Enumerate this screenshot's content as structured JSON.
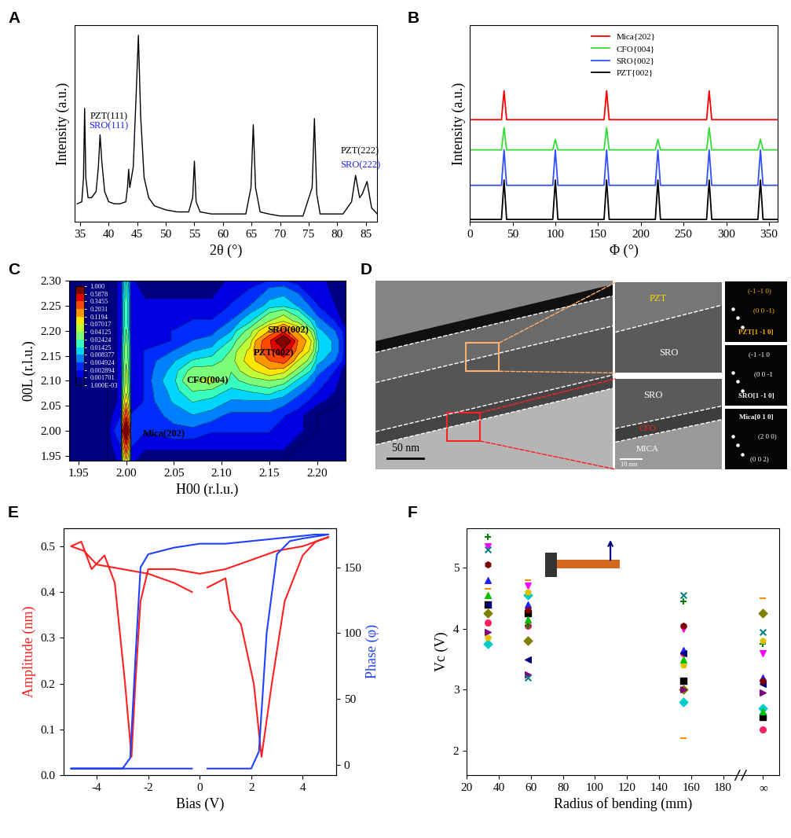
{
  "chart_data": [
    {
      "panel": "A",
      "type": "line",
      "xlabel": "2θ (°)",
      "ylabel": "Intensity (a.u.)",
      "color": "#000000",
      "xlim": [
        34,
        87
      ],
      "xticks": [
        35,
        40,
        45,
        50,
        55,
        60,
        65,
        70,
        75,
        80,
        85
      ],
      "ylim": [
        0.08,
        1.05
      ],
      "tick_labels": "x",
      "x": [
        34.5,
        35.3,
        35.6,
        35.8,
        36.0,
        36.4,
        37.0,
        37.8,
        38.2,
        38.5,
        38.8,
        39.3,
        40,
        41,
        42,
        43,
        43.3,
        43.5,
        43.7,
        44.3,
        44.8,
        45.2,
        45.6,
        46.2,
        47,
        48,
        50,
        52,
        54,
        54.7,
        55.0,
        55.3,
        56,
        58,
        60,
        62,
        64,
        64.9,
        65.3,
        65.7,
        66.5,
        68,
        70,
        72,
        74,
        75.6,
        76.0,
        76.4,
        77,
        79,
        81,
        82.5,
        83.2,
        83.9,
        84.4,
        85.2,
        86.0,
        87
      ],
      "values": [
        0.17,
        0.18,
        0.3,
        0.64,
        0.3,
        0.2,
        0.2,
        0.23,
        0.35,
        0.51,
        0.38,
        0.23,
        0.18,
        0.17,
        0.17,
        0.18,
        0.25,
        0.34,
        0.25,
        0.35,
        0.7,
        1.0,
        0.6,
        0.3,
        0.2,
        0.16,
        0.14,
        0.13,
        0.13,
        0.2,
        0.38,
        0.18,
        0.13,
        0.12,
        0.12,
        0.12,
        0.12,
        0.25,
        0.56,
        0.25,
        0.13,
        0.12,
        0.11,
        0.11,
        0.11,
        0.25,
        0.59,
        0.22,
        0.12,
        0.12,
        0.12,
        0.18,
        0.31,
        0.2,
        0.22,
        0.28,
        0.15,
        0.12
      ],
      "annotations": [
        {
          "text": "PZT(111)",
          "x": 40.0,
          "y": 0.6,
          "color": "#000000"
        },
        {
          "text": "SRO(111)",
          "x": 40.0,
          "y": 0.555,
          "color": "#2020ff"
        },
        {
          "text": "PZT(222)",
          "x": 84.0,
          "y": 0.43,
          "color": "#000000"
        },
        {
          "text": "SRO(222)",
          "x": 84.0,
          "y": 0.36,
          "color": "#2020ff"
        }
      ]
    },
    {
      "panel": "B",
      "type": "line",
      "xlabel": "Φ (°)",
      "ylabel": "Intensity (a.u.)",
      "xlim": [
        0,
        360
      ],
      "xticks": [
        0,
        50,
        100,
        150,
        200,
        250,
        300,
        350
      ],
      "ylim": [
        0,
        1.5
      ],
      "tick_labels": "x",
      "legend": "upper center",
      "series": [
        {
          "name": "Mica{202}",
          "color": "#ff0000",
          "x": [
            0,
            37,
            40,
            43,
            157,
            160,
            163,
            277,
            280,
            283,
            360
          ],
          "values": [
            0.78,
            0.78,
            1.0,
            0.78,
            0.78,
            1.0,
            0.78,
            0.78,
            1.0,
            0.78,
            0.78
          ]
        },
        {
          "name": "CFO{004}",
          "color": "#33dd33",
          "x": [
            0,
            37,
            40,
            43,
            97,
            100,
            103,
            157,
            160,
            163,
            217,
            220,
            223,
            277,
            280,
            283,
            337,
            340,
            343,
            360
          ],
          "values": [
            0.55,
            0.55,
            0.72,
            0.55,
            0.55,
            0.63,
            0.55,
            0.55,
            0.72,
            0.55,
            0.55,
            0.63,
            0.55,
            0.55,
            0.72,
            0.55,
            0.55,
            0.63,
            0.55,
            0.55
          ]
        },
        {
          "name": "SRO{002}",
          "color": "#3050ff",
          "x": [
            0,
            37,
            40,
            43,
            97,
            100,
            103,
            157,
            160,
            163,
            217,
            220,
            223,
            277,
            280,
            283,
            337,
            340,
            343,
            360
          ],
          "values": [
            0.28,
            0.28,
            0.55,
            0.28,
            0.28,
            0.55,
            0.28,
            0.28,
            0.55,
            0.28,
            0.28,
            0.55,
            0.28,
            0.28,
            0.55,
            0.28,
            0.28,
            0.55,
            0.28,
            0.28
          ]
        },
        {
          "name": "PZT{002}",
          "color": "#000000",
          "x": [
            0,
            37,
            40,
            43,
            97,
            100,
            103,
            157,
            160,
            163,
            217,
            220,
            223,
            277,
            280,
            283,
            337,
            340,
            343,
            360
          ],
          "values": [
            0.02,
            0.02,
            0.32,
            0.02,
            0.02,
            0.32,
            0.02,
            0.02,
            0.32,
            0.02,
            0.02,
            0.32,
            0.02,
            0.02,
            0.32,
            0.02,
            0.02,
            0.32,
            0.02,
            0.02
          ]
        }
      ]
    },
    {
      "panel": "C",
      "type": "contour",
      "xlabel": "H00 (r.l.u.)",
      "ylabel": "00L (r.l.u.)",
      "xlim": [
        1.94,
        2.23
      ],
      "ylim": [
        1.94,
        2.3
      ],
      "xticks": [
        1.95,
        {
          "value": 2.0,
          "label": "2.00"
        },
        2.05,
        {
          "value": 2.1,
          "label": "2.10"
        },
        2.15,
        {
          "value": 2.2,
          "label": "2.20"
        }
      ],
      "yticks": [
        1.95,
        {
          "value": 2.0,
          "label": "2.00"
        },
        2.05,
        {
          "value": 2.1,
          "label": "2.10"
        },
        2.15,
        {
          "value": 2.2,
          "label": "2.20"
        },
        2.25,
        {
          "value": 2.3,
          "label": "2.30"
        }
      ],
      "h": [
        1.94,
        1.98,
        1.995,
        2.0,
        2.005,
        2.02,
        2.05,
        2.07,
        2.09,
        2.11,
        2.13,
        2.15,
        2.165,
        2.18,
        2.2,
        2.23
      ],
      "l": [
        1.94,
        1.97,
        2.0,
        2.03,
        2.06,
        2.08,
        2.1,
        2.12,
        2.14,
        2.16,
        2.18,
        2.2,
        2.22,
        2.25,
        2.3
      ],
      "intensity": [
        [
          0.001,
          0.001,
          0.002,
          0.1,
          0.002,
          0.001,
          0.001,
          0.001,
          0.001,
          0.001,
          0.001,
          0.001,
          0.001,
          0.001,
          0.001,
          0.001
        ],
        [
          0.001,
          0.001,
          0.003,
          0.3,
          0.003,
          0.002,
          0.002,
          0.002,
          0.002,
          0.002,
          0.002,
          0.002,
          0.002,
          0.001,
          0.001,
          0.001
        ],
        [
          0.001,
          0.001,
          0.005,
          1.0,
          0.005,
          0.003,
          0.004,
          0.004,
          0.003,
          0.003,
          0.003,
          0.003,
          0.002,
          0.002,
          0.001,
          0.001
        ],
        [
          0.001,
          0.001,
          0.003,
          0.3,
          0.003,
          0.003,
          0.006,
          0.008,
          0.006,
          0.004,
          0.004,
          0.004,
          0.003,
          0.002,
          0.001,
          0.001
        ],
        [
          0.001,
          0.001,
          0.002,
          0.1,
          0.002,
          0.003,
          0.009,
          0.015,
          0.012,
          0.008,
          0.008,
          0.008,
          0.006,
          0.004,
          0.002,
          0.001
        ],
        [
          0.001,
          0.001,
          0.002,
          0.06,
          0.002,
          0.003,
          0.01,
          0.025,
          0.02,
          0.012,
          0.015,
          0.018,
          0.012,
          0.006,
          0.003,
          0.001
        ],
        [
          0.001,
          0.001,
          0.002,
          0.05,
          0.002,
          0.003,
          0.012,
          0.04,
          0.05,
          0.02,
          0.03,
          0.04,
          0.03,
          0.012,
          0.004,
          0.001
        ],
        [
          0.001,
          0.001,
          0.002,
          0.045,
          0.002,
          0.003,
          0.01,
          0.03,
          0.03,
          0.025,
          0.06,
          0.1,
          0.08,
          0.03,
          0.006,
          0.001
        ],
        [
          0.001,
          0.001,
          0.002,
          0.04,
          0.002,
          0.003,
          0.008,
          0.015,
          0.018,
          0.03,
          0.09,
          0.2,
          0.25,
          0.07,
          0.01,
          0.002
        ],
        [
          0.001,
          0.001,
          0.002,
          0.035,
          0.002,
          0.003,
          0.005,
          0.008,
          0.01,
          0.025,
          0.08,
          0.3,
          0.5,
          0.15,
          0.015,
          0.002
        ],
        [
          0.001,
          0.001,
          0.002,
          0.03,
          0.002,
          0.002,
          0.003,
          0.005,
          0.006,
          0.015,
          0.05,
          0.3,
          1.0,
          0.2,
          0.015,
          0.002
        ],
        [
          0.001,
          0.001,
          0.002,
          0.025,
          0.002,
          0.002,
          0.003,
          0.004,
          0.004,
          0.008,
          0.03,
          0.12,
          0.25,
          0.1,
          0.01,
          0.002
        ],
        [
          0.001,
          0.001,
          0.002,
          0.02,
          0.002,
          0.002,
          0.002,
          0.003,
          0.003,
          0.005,
          0.012,
          0.04,
          0.06,
          0.03,
          0.006,
          0.001
        ],
        [
          0.001,
          0.001,
          0.002,
          0.02,
          0.002,
          0.002,
          0.002,
          0.002,
          0.002,
          0.003,
          0.005,
          0.01,
          0.012,
          0.008,
          0.003,
          0.001
        ],
        [
          0.001,
          0.001,
          0.002,
          0.015,
          0.002,
          0.001,
          0.001,
          0.001,
          0.001,
          0.002,
          0.002,
          0.003,
          0.003,
          0.002,
          0.002,
          0.001
        ]
      ],
      "levels": [
        {
          "value": 0.001,
          "label": "1.000E-03"
        },
        0.001701,
        0.002894,
        0.004924,
        0.008377,
        0.01425,
        0.02424,
        0.04125,
        0.07017,
        0.1194,
        0.2031,
        0.3455,
        0.5878,
        {
          "value": 1.0,
          "label": "1.000"
        }
      ],
      "annotations": [
        {
          "text": "SRO(002)",
          "x": 2.17,
          "y": 2.2,
          "color": "#000000"
        },
        {
          "text": "PZT(002)",
          "x": 2.155,
          "y": 2.155,
          "color": "#000000"
        },
        {
          "text": "CFO(004)",
          "x": 2.085,
          "y": 2.1,
          "color": "#000000"
        },
        {
          "text": "Mica(202)",
          "x": 2.04,
          "y": 1.995,
          "color": "#000000"
        }
      ]
    },
    {
      "panel": "D",
      "type": "image",
      "scale_bars": [
        "50 nm",
        "10 nm"
      ],
      "insets": [
        {
          "labels": [
            "PZT",
            "SRO"
          ],
          "colors": [
            "#ffd700",
            "#ffffff"
          ]
        },
        {
          "labels": [
            "SRO",
            "CFO",
            "MICA"
          ],
          "colors": [
            "#ffffff",
            "#ff2020",
            "#ffffff"
          ]
        }
      ],
      "fft": [
        {
          "zone": "PZT[1 -1 0]",
          "spots": [
            "(-1 -1 0)",
            "(0 0 -1)"
          ],
          "color": "#ffb000"
        },
        {
          "zone": "SRO[1 -1 0]",
          "spots": [
            "(-1 -1 0",
            "(0 0 -1"
          ],
          "color": "#ffffff"
        },
        {
          "zone": "Mica[0 1 0]",
          "spots": [
            "(2 0 0)",
            "(0 0 2)"
          ],
          "color": "#ffffff"
        }
      ]
    },
    {
      "panel": "E",
      "type": "line",
      "xlabel": "Bias (V)",
      "ylabel": "Amplitude (nm)",
      "y2label": "Phase (φ)",
      "xlim": [
        -5.3,
        5.3
      ],
      "xticks": [
        -4,
        -2,
        0,
        2,
        4
      ],
      "ylim": [
        0,
        0.54
      ],
      "yticks": [
        0.0,
        0.1,
        0.2,
        0.3,
        0.4,
        0.5
      ],
      "y2lim": [
        -8,
        180
      ],
      "y2ticks": [
        0,
        50,
        100,
        150
      ],
      "series": [
        {
          "color": "#ff2020",
          "axis": "y",
          "x": [
            0.3,
            1.0,
            1.2,
            1.6,
            2.1,
            2.4,
            2.8,
            3.3,
            4.0,
            4.5,
            5.0,
            4.5,
            4.0,
            3.0,
            2.0,
            1.0,
            0.0,
            -1.0,
            -2.0,
            -2.3,
            -2.5,
            -2.65,
            -2.9,
            -3.3,
            -3.7,
            -4.2,
            -4.6,
            -5.0,
            -4.5,
            -4.0,
            -3.0,
            -2.0,
            -1.0,
            -0.3
          ],
          "values": [
            0.41,
            0.43,
            0.36,
            0.33,
            0.2,
            0.04,
            0.2,
            0.38,
            0.48,
            0.51,
            0.52,
            0.51,
            0.5,
            0.49,
            0.47,
            0.45,
            0.44,
            0.45,
            0.45,
            0.38,
            0.2,
            0.04,
            0.2,
            0.42,
            0.48,
            0.45,
            0.51,
            0.5,
            0.49,
            0.46,
            0.45,
            0.44,
            0.42,
            0.4
          ]
        },
        {
          "color": "#2040ff",
          "axis": "y2",
          "x": [
            0.3,
            1.0,
            2.0,
            2.3,
            2.6,
            3.0,
            3.5,
            4.0,
            5.0,
            4.5,
            3.0,
            2.0,
            1.0,
            0.0,
            -1.0,
            -2.0,
            -2.3,
            -2.5,
            -2.7,
            -3.0,
            -4.0,
            -5.0,
            -4.0,
            -2.0,
            -0.3
          ],
          "values": [
            -3,
            -3,
            -3,
            10,
            100,
            160,
            170,
            172,
            175,
            175,
            172,
            170,
            168,
            168,
            165,
            160,
            150,
            80,
            5,
            -3,
            -3,
            -3,
            -3,
            -3,
            -3
          ]
        }
      ]
    },
    {
      "panel": "F",
      "type": "scatter",
      "xlabel": "Radius of bending (mm)",
      "ylabel": "Vc (V)",
      "xlim": [
        20,
        215
      ],
      "xticks": [
        20,
        40,
        60,
        80,
        100,
        120,
        140,
        160,
        180,
        {
          "value": 205,
          "label": "∞"
        }
      ],
      "ylim": [
        1.6,
        5.65
      ],
      "yticks": [
        2,
        3,
        4,
        5
      ],
      "x": [
        33,
        58,
        155,
        205
      ],
      "series": [
        {
          "color": "#000000",
          "marker": "square",
          "values": [
            4.4,
            4.25,
            3.15,
            2.55
          ]
        },
        {
          "color": "#ff2060",
          "marker": "circle",
          "values": [
            4.1,
            4.05,
            3.6,
            2.35
          ]
        },
        {
          "color": "#2020ff",
          "marker": "triangle_up",
          "values": [
            4.8,
            4.4,
            3.65,
            3.2
          ]
        },
        {
          "color": "#ff00ff",
          "marker": "triangle_down",
          "values": [
            5.35,
            4.7,
            4.0,
            3.6
          ]
        },
        {
          "color": "#808000",
          "marker": "diamond",
          "values": [
            4.25,
            3.8,
            3.0,
            4.25
          ]
        },
        {
          "color": "#000080",
          "marker": "triangle_left",
          "values": [
            4.4,
            3.5,
            3.6,
            3.1
          ]
        },
        {
          "color": "#800080",
          "marker": "triangle_right",
          "values": [
            3.95,
            3.25,
            3.0,
            2.95
          ]
        },
        {
          "color": "#800000",
          "marker": "hexagon",
          "values": [
            5.05,
            4.3,
            4.05,
            3.15
          ]
        },
        {
          "color": "#008000",
          "marker": "plus",
          "values": [
            5.5,
            4.05,
            4.45,
            3.75
          ]
        },
        {
          "color": "#008080",
          "marker": "x",
          "values": [
            5.3,
            3.2,
            4.55,
            3.95
          ]
        },
        {
          "color": "#ff8c00",
          "marker": "hline",
          "values": [
            4.65,
            4.8,
            2.2,
            4.5
          ]
        },
        {
          "color": "#00cccc",
          "marker": "diamond",
          "values": [
            3.75,
            4.55,
            2.8,
            2.7
          ]
        },
        {
          "color": "#e0c000",
          "marker": "pentagon",
          "values": [
            3.85,
            4.6,
            3.4,
            3.8
          ]
        },
        {
          "color": "#00c000",
          "marker": "triangle_up",
          "values": [
            4.55,
            4.15,
            3.5,
            2.65
          ]
        }
      ]
    }
  ]
}
